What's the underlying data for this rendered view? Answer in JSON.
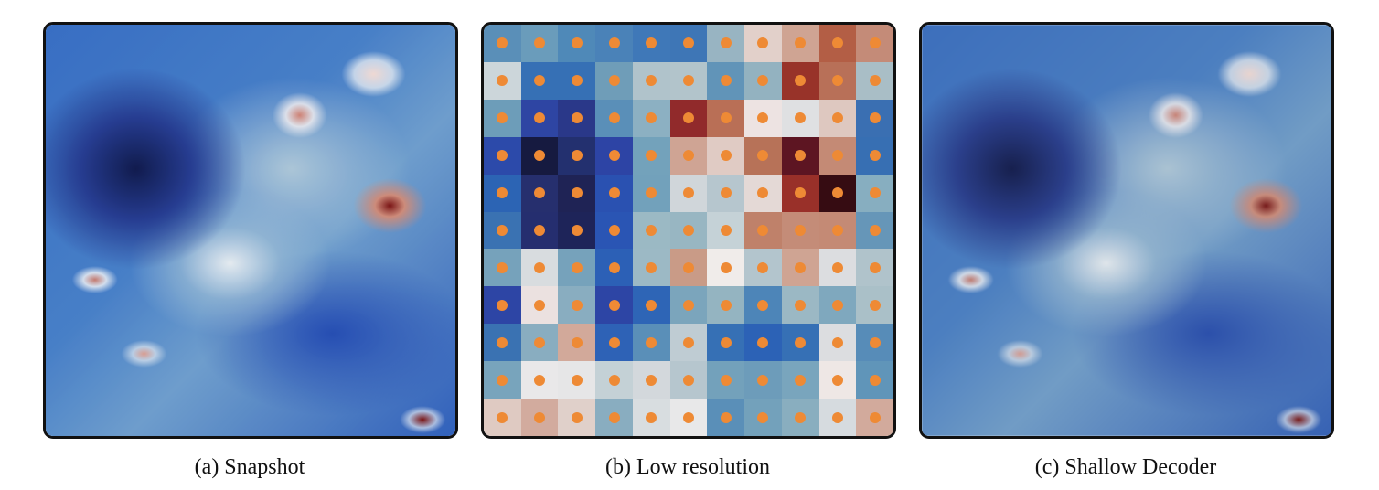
{
  "figure": {
    "panels": [
      {
        "caption": "(a) Snapshot"
      },
      {
        "caption": "(b) Low resolution"
      },
      {
        "caption": "(c) Shallow Decoder"
      }
    ],
    "colormap": "blue-white-red",
    "sensor_dot_color": "#ee8a35",
    "low_resolution_grid": [
      [
        "#5a8fb8",
        "#6a9cbb",
        "#4f89b8",
        "#4a82b8",
        "#3f78b8",
        "#3e76b6",
        "#98b4c2",
        "#e2d0ca",
        "#cfa493",
        "#b35e45",
        "#c48b78"
      ],
      [
        "#ccd6da",
        "#3670b5",
        "#3670b5",
        "#6f9db8",
        "#b0c3cb",
        "#b2c4cb",
        "#6194b8",
        "#93b2c0",
        "#983329",
        "#b87058",
        "#a9bec6"
      ],
      [
        "#6d9db9",
        "#2e45a3",
        "#2a3889",
        "#5a8fb8",
        "#8cb0c2",
        "#912a2b",
        "#b96f56",
        "#ede3e2",
        "#dfe0e2",
        "#dec8c0",
        "#3a6fb2"
      ],
      [
        "#2c4aaa",
        "#161a40",
        "#23306f",
        "#2d44a5",
        "#73a2bb",
        "#cfa494",
        "#e0cbc4",
        "#b77258",
        "#5d1522",
        "#c48a75",
        "#376fb3"
      ],
      [
        "#2c64b4",
        "#262f6e",
        "#1f2355",
        "#2a51b1",
        "#72a1bb",
        "#d0d6da",
        "#b6c6ce",
        "#e4d9d6",
        "#993029",
        "#360c12",
        "#87aec0"
      ],
      [
        "#3a72b2",
        "#252e6f",
        "#1e2459",
        "#2a55b4",
        "#9bb9c4",
        "#98b6c2",
        "#c5d2d7",
        "#bf816a",
        "#c48c78",
        "#c48a75",
        "#6696b8"
      ],
      [
        "#76a2bb",
        "#d8dcdf",
        "#76a2bb",
        "#2c60b6",
        "#9cb9c5",
        "#c99b87",
        "#f0ecea",
        "#b3c5cd",
        "#cfa493",
        "#dcdde0",
        "#b0c3cb"
      ],
      [
        "#2d45a5",
        "#ebe1e0",
        "#89adc0",
        "#2d45a5",
        "#2e65b6",
        "#7ba5bc",
        "#94b4c1",
        "#4d85b8",
        "#9bb8c4",
        "#7fa8be",
        "#aac0c8"
      ],
      [
        "#3a72b2",
        "#89adc0",
        "#d2a99a",
        "#2e62b6",
        "#5a8fb8",
        "#bfccd3",
        "#3670b5",
        "#2c62b6",
        "#3670b5",
        "#dcdde0",
        "#578cb8"
      ],
      [
        "#78a4bc",
        "#e9e8e9",
        "#e6e6e7",
        "#c4d1d6",
        "#d3d8dc",
        "#b6c6ce",
        "#73a1bb",
        "#6d9cba",
        "#79a5bd",
        "#eee7e5",
        "#6095b9"
      ],
      [
        "#dfcac2",
        "#d2ab9e",
        "#e0d0ca",
        "#89adc0",
        "#d8dde0",
        "#e8e8e9",
        "#5a8fb8",
        "#73a1bb",
        "#89aebf",
        "#d6dbdf",
        "#d2aa9c"
      ]
    ]
  }
}
